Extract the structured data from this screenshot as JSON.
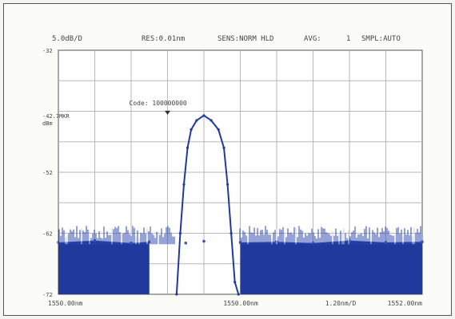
{
  "header": {
    "scale": "5.0dB/D",
    "resolution": "RES:0.01nm",
    "sensitivity": "SENS:NORM HLD",
    "average_label": "AVG:",
    "average_value": "1",
    "sampling": "SMPL:AUTO"
  },
  "marker": {
    "label": "Code: 100000000",
    "x": 1550.03,
    "y": -42.7
  },
  "chart_data": {
    "type": "line",
    "title": "",
    "xlabel": "",
    "ylabel": "",
    "xlim": [
      1550.0,
      1550.1
    ],
    "ylim": [
      -72.0,
      -32.0
    ],
    "grid": true,
    "x_tick_labels": [
      "1550.00nm",
      "1550.00nm",
      "1.20nm/D",
      "1552.00nm"
    ],
    "y_tick_labels": [
      {
        "value": -32.0,
        "label": "-32"
      },
      {
        "value": -42.7,
        "label": "-42.7MKR\ndBm"
      },
      {
        "value": -52.0,
        "label": "-52"
      },
      {
        "value": -62.0,
        "label": "-62"
      },
      {
        "value": -72.0,
        "label": "-72"
      }
    ],
    "series": [
      {
        "style": "noise-floor",
        "color": "#1f3a9c",
        "x": [
          1550.0,
          1550.01,
          1550.02,
          1550.025,
          1550.035,
          1550.04,
          1550.05,
          1550.06,
          1550.07,
          1550.08,
          1550.09,
          1550.1
        ],
        "y": [
          -63.5,
          -63.2,
          -63.6,
          -63.4,
          -63.6,
          -63.3,
          -63.5,
          -63.4,
          -63.6,
          -63.2,
          -63.5,
          -63.4
        ]
      },
      {
        "style": "peak",
        "color": "#1f3a9c",
        "x": [
          1550.0325,
          1550.0335,
          1550.0345,
          1550.0355,
          1550.0365,
          1550.038,
          1550.04,
          1550.042,
          1550.044,
          1550.0455,
          1550.0465,
          1550.0475,
          1550.0485,
          1550.0495
        ],
        "y": [
          -72.0,
          -62.0,
          -54.0,
          -48.0,
          -45.0,
          -43.5,
          -42.7,
          -43.5,
          -45.0,
          -48.0,
          -54.0,
          -62.0,
          -70.0,
          -72.0
        ]
      }
    ]
  }
}
